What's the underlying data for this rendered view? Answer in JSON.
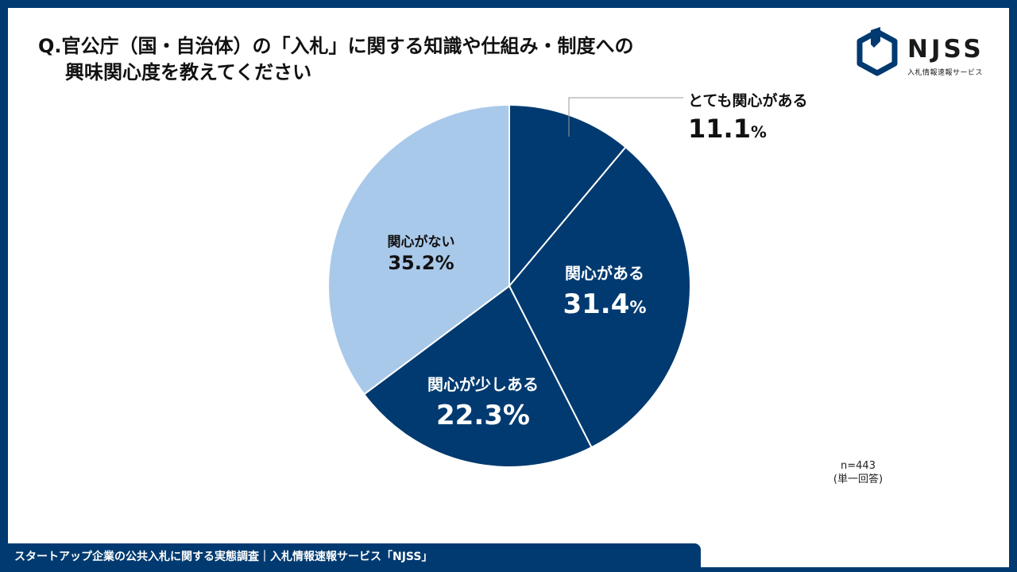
{
  "title": {
    "line1": "Q.官公庁（国・自治体）の「入札」に関する知識や仕組み・制度への",
    "line2": "興味関心度を教えてください"
  },
  "logo": {
    "text": "NJSS",
    "subtitle": "入札情報速報サービス",
    "color": "#003a70"
  },
  "note": {
    "n": "n=443",
    "type": "(単一回答)"
  },
  "footer": {
    "text": "スタートアップ企業の公共入札に関する実態調査｜入札情報速報サービス「NJSS」"
  },
  "chart_data": {
    "type": "pie",
    "start": "12 o'clock, clockwise",
    "slices": [
      {
        "label": "とても関心がある",
        "value": 11.1,
        "display": "11.1",
        "unit": "%",
        "color": "#003a70"
      },
      {
        "label": "関心がある",
        "value": 31.4,
        "display": "31.4",
        "unit": "%",
        "color": "#003a70"
      },
      {
        "label": "関心が少しある",
        "value": 22.3,
        "display": "22.3%",
        "unit": "",
        "color": "#003a70"
      },
      {
        "label": "関心がない",
        "value": 35.2,
        "display": "35.2%",
        "unit": "",
        "color": "#a9c9ea"
      }
    ]
  }
}
